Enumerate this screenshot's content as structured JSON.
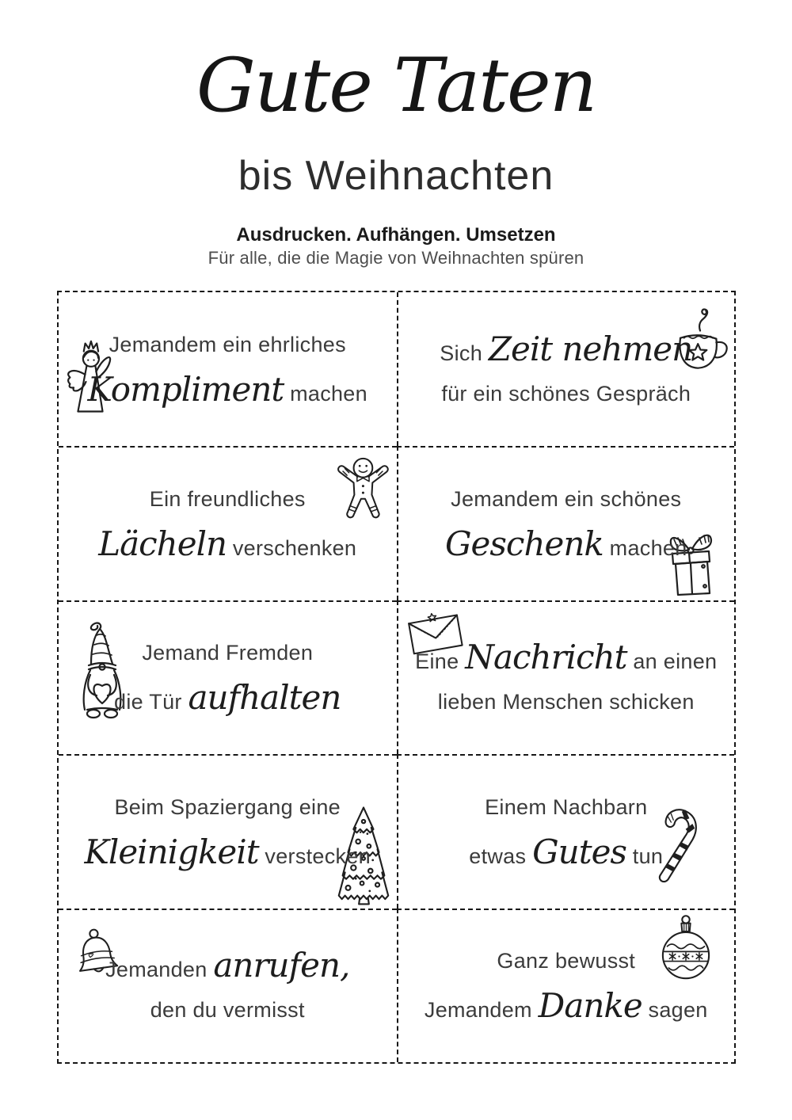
{
  "header": {
    "title": "Gute Taten",
    "subtitle": "bis Weihnachten",
    "tagline_bold": "Ausdrucken. Aufhängen. Umsetzen",
    "tagline_light": "Für alle, die die Magie von Weihnachten spüren"
  },
  "colors": {
    "ink": "#1c1c1c",
    "body_text": "#3b3b3b"
  },
  "cards": [
    {
      "icon": "angel",
      "lines": [
        [
          {
            "t": "Jemandem ein ehrliches",
            "style": "normal"
          }
        ],
        [
          {
            "t": "Kompliment",
            "style": "script"
          },
          {
            "t": " machen",
            "style": "normal"
          }
        ]
      ]
    },
    {
      "icon": "mug",
      "lines": [
        [
          {
            "t": "Sich ",
            "style": "normal"
          },
          {
            "t": "Zeit nehmen",
            "style": "script"
          }
        ],
        [
          {
            "t": "für ein schönes Gespräch",
            "style": "normal"
          }
        ]
      ]
    },
    {
      "icon": "gingerbread",
      "lines": [
        [
          {
            "t": "Ein freundliches",
            "style": "normal"
          }
        ],
        [
          {
            "t": "Lächeln",
            "style": "script"
          },
          {
            "t": " verschenken",
            "style": "normal"
          }
        ]
      ]
    },
    {
      "icon": "gift",
      "lines": [
        [
          {
            "t": "Jemandem ein schönes",
            "style": "normal"
          }
        ],
        [
          {
            "t": "Geschenk",
            "style": "script"
          },
          {
            "t": " machen",
            "style": "normal"
          }
        ]
      ]
    },
    {
      "icon": "gnome",
      "lines": [
        [
          {
            "t": "Jemand Fremden",
            "style": "normal"
          }
        ],
        [
          {
            "t": "die Tür ",
            "style": "normal"
          },
          {
            "t": "aufhalten",
            "style": "script"
          }
        ]
      ]
    },
    {
      "icon": "envelope",
      "lines": [
        [
          {
            "t": "Eine ",
            "style": "normal"
          },
          {
            "t": "Nachricht",
            "style": "script"
          },
          {
            "t": " an einen",
            "style": "normal"
          }
        ],
        [
          {
            "t": "lieben Menschen schicken",
            "style": "normal"
          }
        ]
      ]
    },
    {
      "icon": "tree",
      "lines": [
        [
          {
            "t": "Beim Spaziergang eine",
            "style": "normal"
          }
        ],
        [
          {
            "t": "Kleinigkeit",
            "style": "script"
          },
          {
            "t": " verstecken",
            "style": "normal"
          }
        ]
      ]
    },
    {
      "icon": "candy-cane",
      "lines": [
        [
          {
            "t": "Einem Nachbarn",
            "style": "normal"
          }
        ],
        [
          {
            "t": "etwas ",
            "style": "normal"
          },
          {
            "t": "Gutes",
            "style": "script"
          },
          {
            "t": " tun",
            "style": "normal"
          }
        ]
      ]
    },
    {
      "icon": "bell",
      "lines": [
        [
          {
            "t": "Jemanden ",
            "style": "normal"
          },
          {
            "t": "anrufen,",
            "style": "script"
          }
        ],
        [
          {
            "t": "den du vermisst",
            "style": "normal"
          }
        ]
      ]
    },
    {
      "icon": "ornament",
      "lines": [
        [
          {
            "t": "Ganz bewusst",
            "style": "normal"
          }
        ],
        [
          {
            "t": "Jemandem ",
            "style": "normal"
          },
          {
            "t": "Danke",
            "style": "script"
          },
          {
            "t": " sagen",
            "style": "normal"
          }
        ]
      ]
    }
  ]
}
